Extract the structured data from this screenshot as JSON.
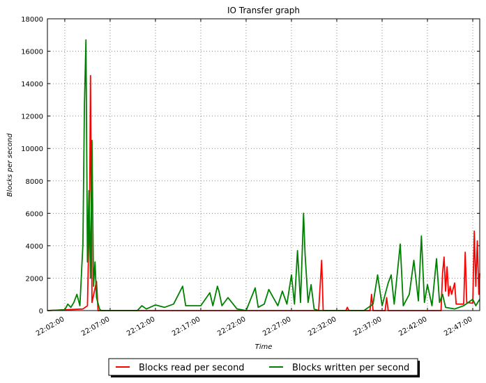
{
  "chart_data": {
    "type": "line",
    "title": "IO Transfer graph",
    "xlabel": "Time",
    "ylabel": "Blocks per second",
    "xlim": [
      "22:00:05",
      "22:47:46"
    ],
    "xticks": [
      "22:02:00",
      "22:07:00",
      "22:12:00",
      "22:17:00",
      "22:22:00",
      "22:27:00",
      "22:32:00",
      "22:37:00",
      "22:42:00",
      "22:47:00"
    ],
    "ylim": [
      0,
      18000
    ],
    "yticks": [
      0,
      2000,
      4000,
      6000,
      8000,
      10000,
      12000,
      14000,
      16000,
      18000
    ],
    "grid": true,
    "legend": "bottom",
    "series": [
      {
        "name": "Blocks read per second",
        "color": "#ff0000",
        "x": [
          "22:00:05",
          "22:04:00",
          "22:04:30",
          "22:04:45",
          "22:04:50",
          "22:05:00",
          "22:05:30",
          "22:05:40",
          "22:28:00",
          "22:30:00",
          "22:30:20",
          "22:30:30",
          "22:33:00",
          "22:33:10",
          "22:33:20",
          "22:35:40",
          "22:35:50",
          "22:36:00",
          "22:37:20",
          "22:37:30",
          "22:37:40",
          "22:43:30",
          "22:43:40",
          "22:43:50",
          "22:44:00",
          "22:44:10",
          "22:44:20",
          "22:44:30",
          "22:44:40",
          "22:45:00",
          "22:45:10",
          "22:46:00",
          "22:46:10",
          "22:46:20",
          "22:47:00",
          "22:47:10",
          "22:47:20",
          "22:47:30",
          "22:47:40",
          "22:47:46"
        ],
        "values": [
          0,
          100,
          300,
          7400,
          14500,
          500,
          1800,
          0,
          0,
          0,
          3100,
          0,
          0,
          200,
          0,
          0,
          1000,
          0,
          0,
          800,
          0,
          0,
          2300,
          3300,
          1200,
          2700,
          900,
          1500,
          1000,
          1700,
          400,
          400,
          3600,
          500,
          450,
          4900,
          1500,
          4300,
          1000,
          2300
        ]
      },
      {
        "name": "Blocks written per second",
        "color": "#008000",
        "x": [
          "22:00:05",
          "22:02:00",
          "22:02:20",
          "22:02:40",
          "22:03:00",
          "22:03:20",
          "22:03:40",
          "22:04:00",
          "22:04:10",
          "22:04:20",
          "22:04:30",
          "22:04:40",
          "22:04:50",
          "22:05:00",
          "22:05:10",
          "22:05:20",
          "22:05:30",
          "22:05:50",
          "22:06:00",
          "22:10:00",
          "22:10:30",
          "22:11:00",
          "22:12:00",
          "22:13:00",
          "22:14:00",
          "22:15:00",
          "22:15:20",
          "22:17:00",
          "22:18:00",
          "22:18:20",
          "22:18:50",
          "22:19:00",
          "22:19:20",
          "22:20:00",
          "22:21:00",
          "22:22:00",
          "22:23:00",
          "22:23:20",
          "22:24:00",
          "22:24:30",
          "22:25:00",
          "22:25:30",
          "22:26:00",
          "22:26:30",
          "22:27:00",
          "22:27:20",
          "22:27:40",
          "22:28:00",
          "22:28:20",
          "22:28:30",
          "22:28:50",
          "22:29:10",
          "22:29:30",
          "22:30:00",
          "22:35:00",
          "22:36:00",
          "22:36:30",
          "22:37:00",
          "22:37:40",
          "22:38:00",
          "22:38:20",
          "22:39:00",
          "22:39:20",
          "22:40:00",
          "22:40:30",
          "22:41:00",
          "22:41:20",
          "22:41:40",
          "22:42:00",
          "22:42:30",
          "22:43:00",
          "22:43:20",
          "22:43:40",
          "22:44:00",
          "22:45:00",
          "22:46:00",
          "22:47:00",
          "22:47:20",
          "22:47:46"
        ],
        "values": [
          0,
          50,
          400,
          200,
          500,
          1000,
          300,
          4100,
          12700,
          16700,
          3000,
          7400,
          2000,
          10500,
          1500,
          3000,
          800,
          100,
          0,
          0,
          300,
          100,
          350,
          200,
          400,
          1500,
          300,
          300,
          1100,
          300,
          1500,
          1200,
          300,
          800,
          100,
          0,
          1400,
          200,
          400,
          1300,
          800,
          300,
          1200,
          400,
          2200,
          400,
          3700,
          500,
          6000,
          3500,
          500,
          1600,
          100,
          0,
          0,
          400,
          2200,
          300,
          1700,
          2200,
          400,
          4100,
          300,
          1000,
          3100,
          600,
          4600,
          500,
          1600,
          300,
          3200,
          500,
          1000,
          200,
          100,
          300,
          700,
          300,
          700
        ]
      }
    ]
  }
}
